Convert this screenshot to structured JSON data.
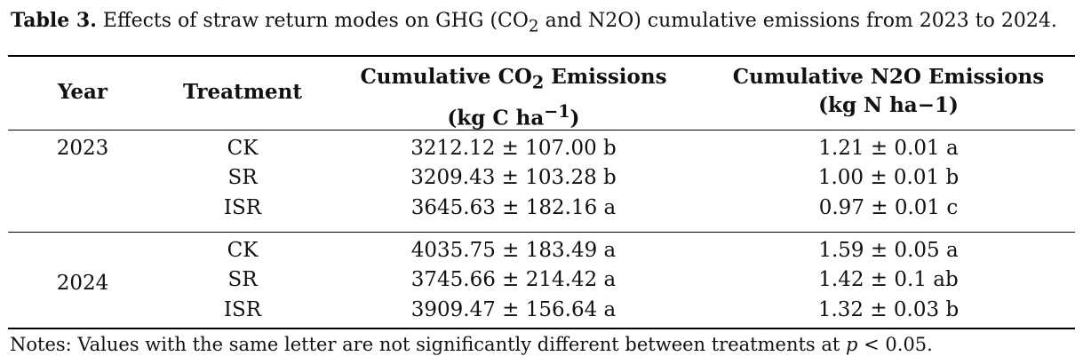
{
  "caption": {
    "label": "Table 3.",
    "text_before": "Effects of straw return modes on GHG (CO",
    "subscript": "2",
    "text_after": " and N2O) cumulative emissions from 2023 to 2024."
  },
  "header": {
    "year": "Year",
    "treatment": "Treatment",
    "co2_line1_before": "Cumulative CO",
    "co2_line1_sub": "2",
    "co2_line1_after": " Emissions",
    "co2_line2_before": "(kg C ha",
    "co2_line2_sup": "−1",
    "co2_line2_after": ")",
    "n2o_line1": "Cumulative N2O Emissions",
    "n2o_line2": "(kg N ha−1)"
  },
  "groups": [
    {
      "year": "2023",
      "rows": [
        {
          "treatment": "CK",
          "co2": "3212.12 ± 107.00 b",
          "n2o": "1.21 ± 0.01 a"
        },
        {
          "treatment": "SR",
          "co2": "3209.43 ± 103.28 b",
          "n2o": "1.00 ± 0.01 b"
        },
        {
          "treatment": "ISR",
          "co2": "3645.63 ± 182.16 a",
          "n2o": "0.97 ± 0.01 c"
        }
      ]
    },
    {
      "year": "2024",
      "rows": [
        {
          "treatment": "CK",
          "co2": "4035.75 ± 183.49 a",
          "n2o": "1.59 ± 0.05 a"
        },
        {
          "treatment": "SR",
          "co2": "3745.66 ± 214.42 a",
          "n2o": "1.42 ± 0.1 ab"
        },
        {
          "treatment": "ISR",
          "co2": "3909.47 ± 156.64 a",
          "n2o": "1.32 ± 0.03 b"
        }
      ]
    }
  ],
  "notes": {
    "before": "Notes: Values with the same letter are not significantly different between treatments at ",
    "italic": "p",
    "after": " < 0.05."
  }
}
